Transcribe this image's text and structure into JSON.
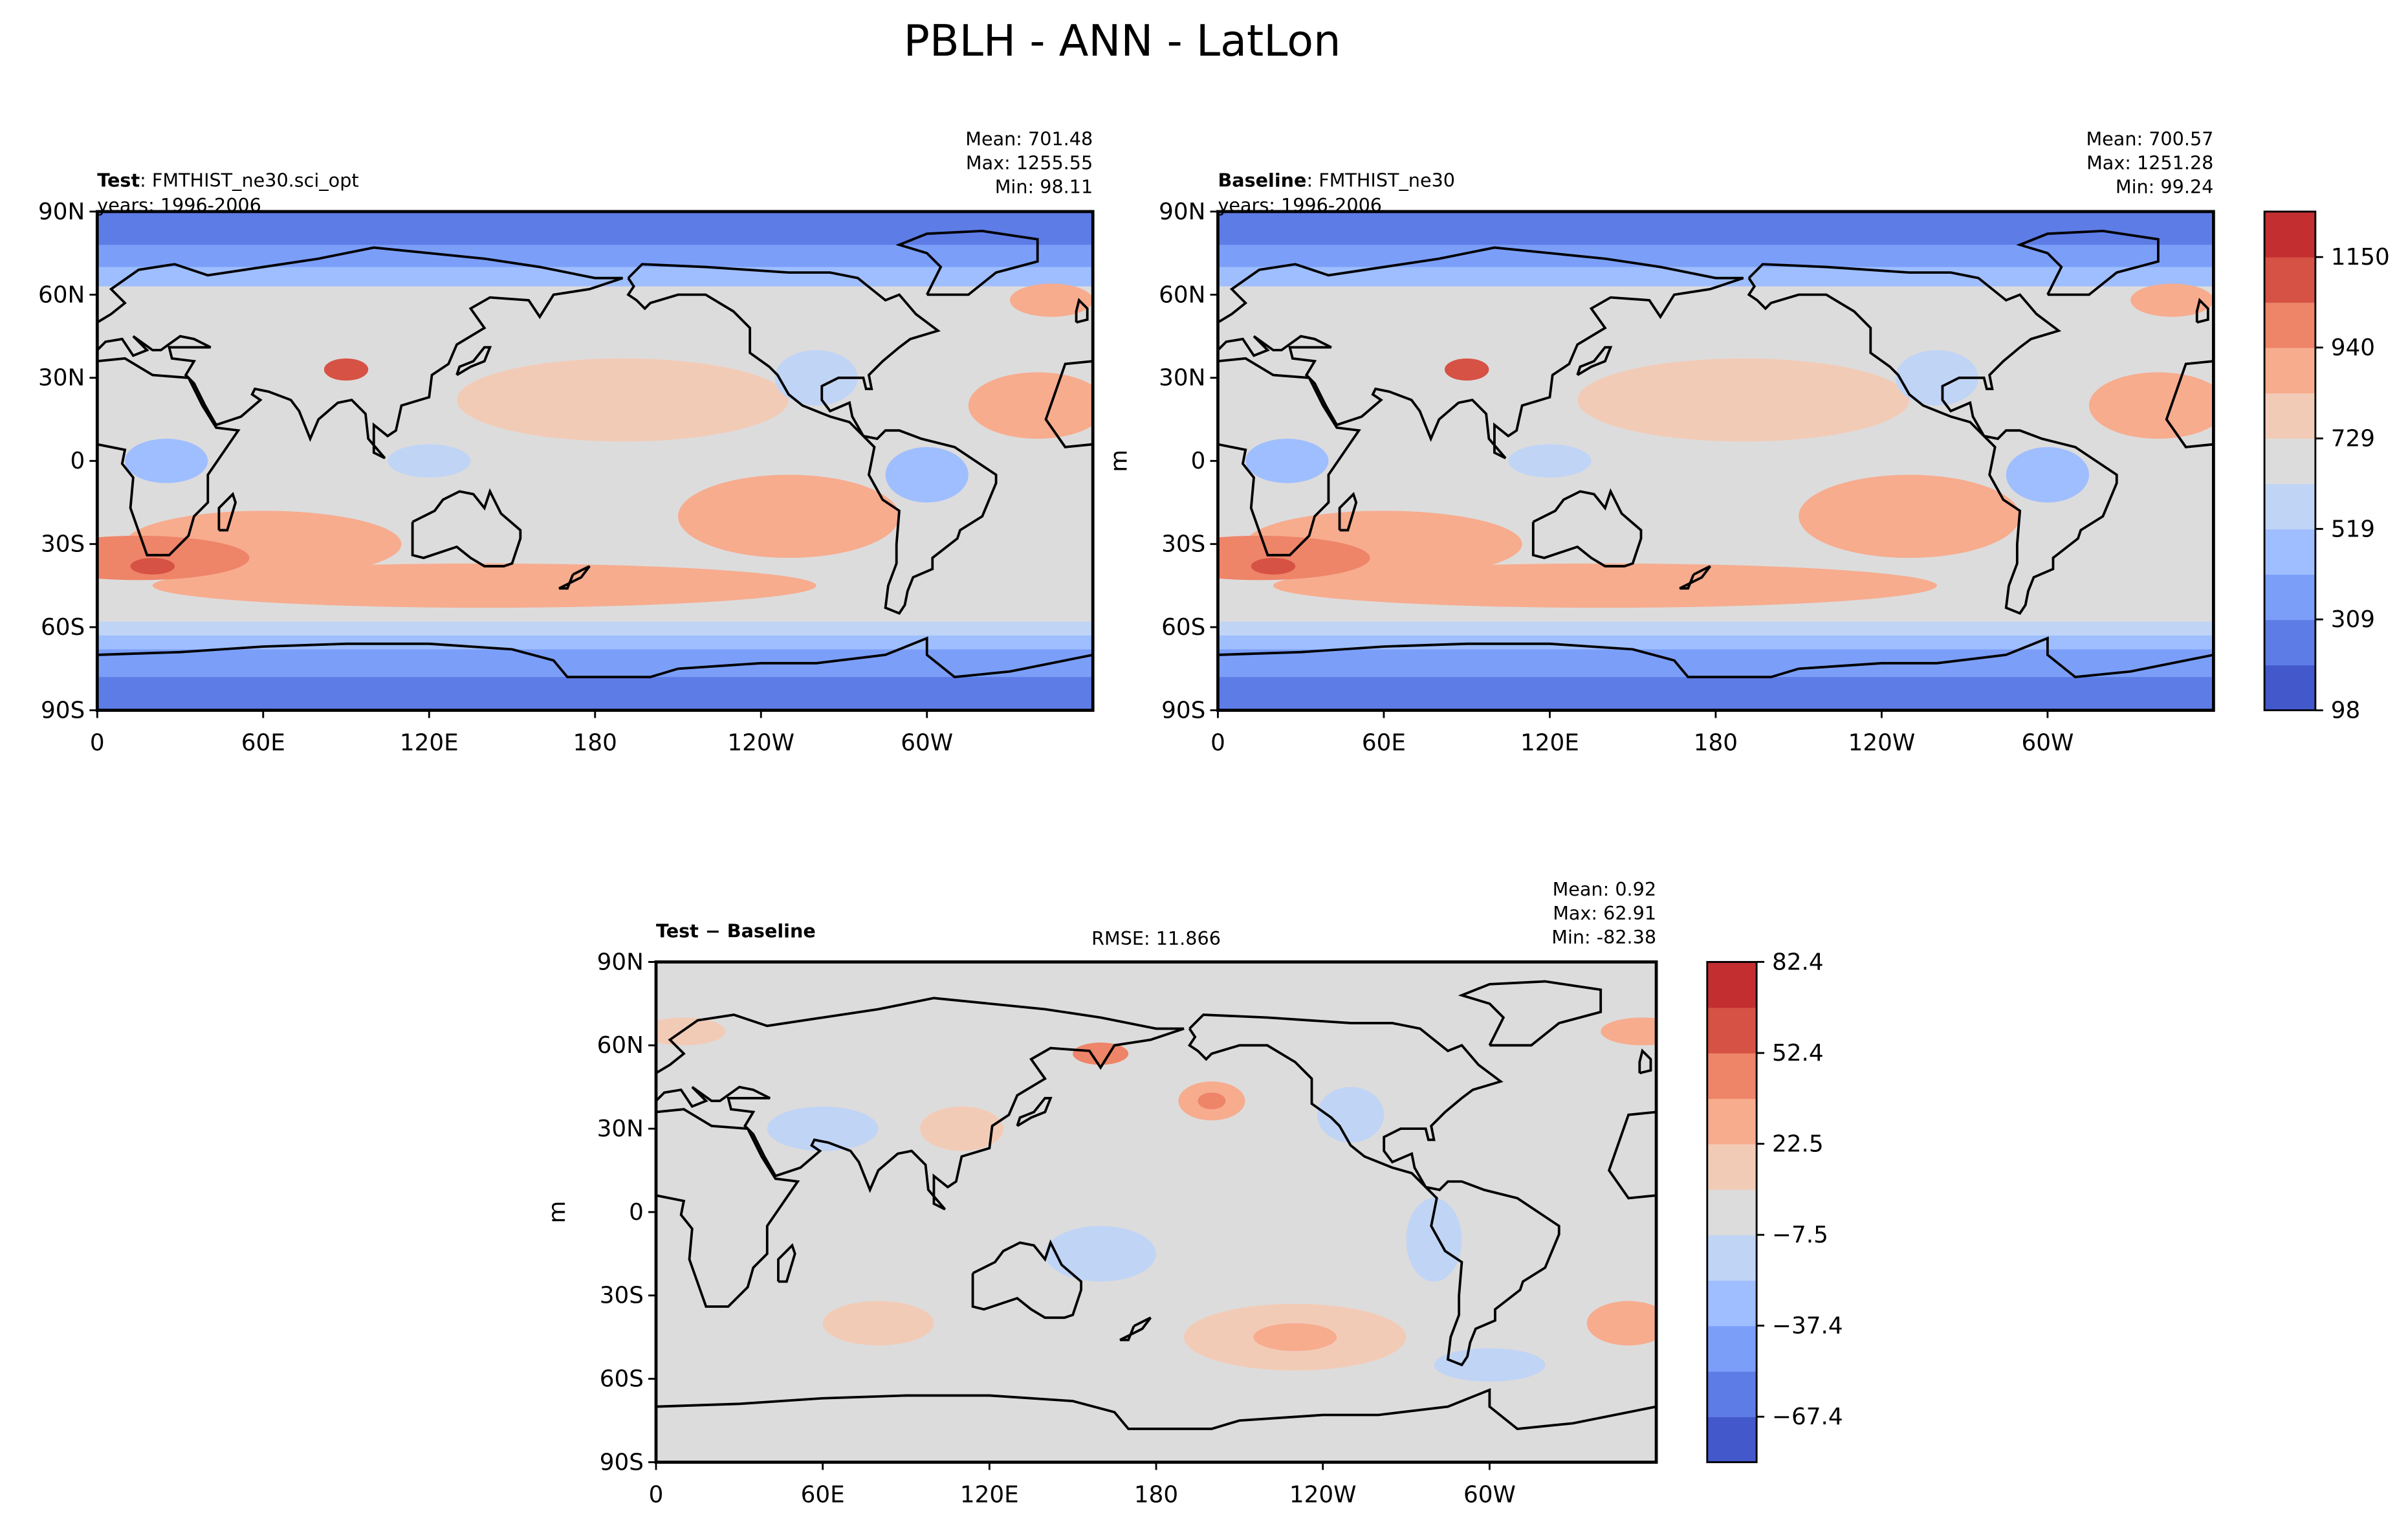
{
  "title": "PBLH - ANN - LatLon",
  "maps": [
    {
      "name": "Test",
      "case": ": FMTHIST_ne30.sci_opt",
      "years": "years: 1996-2006",
      "stats": [
        "Mean: 701.48",
        "Max: 1255.55",
        "Min: 98.11"
      ]
    },
    {
      "name": "Baseline",
      "case": ": FMTHIST_ne30",
      "years": "years: 1996-2006",
      "stats": [
        "Mean: 700.57",
        "Max: 1251.28",
        "Min: 99.24"
      ],
      "units": "m"
    },
    {
      "name": "Test − Baseline",
      "rmse": "RMSE: 11.866",
      "stats": [
        "Mean:  0.92",
        "Max: 62.91",
        "Min: -82.38"
      ],
      "units": "m"
    }
  ],
  "xlim": [
    0,
    360
  ],
  "xticks": [
    0,
    {
      "value": 60,
      "label": "60E"
    },
    {
      "value": 120,
      "label": "120E"
    },
    180,
    {
      "value": 240,
      "label": "120W"
    },
    {
      "value": 300,
      "label": "60W"
    }
  ],
  "ylim": [
    -90,
    90
  ],
  "yticks": [
    {
      "value": -90,
      "label": "90S"
    },
    {
      "value": -60,
      "label": "60S"
    },
    {
      "value": -30,
      "label": "30S"
    },
    0,
    {
      "value": 30,
      "label": "30N"
    },
    {
      "value": 60,
      "label": "60N"
    },
    {
      "value": 90,
      "label": "90N"
    }
  ],
  "colorbars": [
    {
      "clim": [
        98.11,
        1255.55
      ],
      "ticks": [
        98,
        309,
        519,
        729,
        940,
        1150
      ],
      "colors": [
        "#4358cb",
        "#5d7ce6",
        "#7b9ff9",
        "#9ebeff",
        "#c0d4f5",
        "#dddcdc",
        "#f2cbb7",
        "#f7ac8e",
        "#ee8468",
        "#d65244",
        "#c32e31"
      ]
    },
    {
      "clim": [
        -82.38,
        82.38
      ],
      "ticks": [
        {
          "value": -67.4,
          "label": "−67.4"
        },
        {
          "value": -37.4,
          "label": "−37.4"
        },
        {
          "value": -7.5,
          "label": "−7.5"
        },
        22.5,
        52.4,
        82.4
      ],
      "colors": [
        "#4358cb",
        "#5d7ce6",
        "#7b9ff9",
        "#9ebeff",
        "#c0d4f5",
        "#dddcdc",
        "#f2cbb7",
        "#f7ac8e",
        "#ee8468",
        "#d65244",
        "#c32e31"
      ]
    }
  ]
}
